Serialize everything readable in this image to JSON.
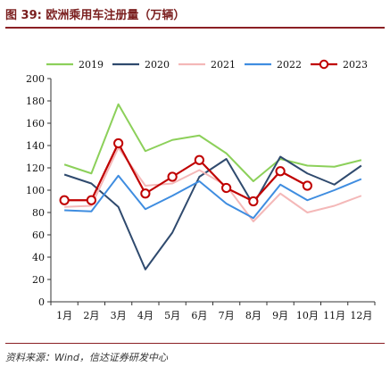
{
  "header": {
    "title": "图 39:  欧洲乘用车注册量（万辆）"
  },
  "footer": {
    "source": "资料来源：Wind，信达证券研发中心"
  },
  "chart_data": {
    "type": "line",
    "title": "图 39:  欧洲乘用车注册量（万辆）",
    "categories": [
      "1月",
      "2月",
      "3月",
      "4月",
      "5月",
      "6月",
      "7月",
      "8月",
      "9月",
      "10月",
      "11月",
      "12月"
    ],
    "ylim": [
      0,
      200
    ],
    "yticks": [
      0,
      20,
      40,
      60,
      80,
      100,
      120,
      140,
      160,
      180,
      200
    ],
    "legend_position": "top",
    "grid": false,
    "series": [
      {
        "name": "2019",
        "color": "#8cd05a",
        "marker": false,
        "values": [
          123,
          115,
          177,
          135,
          145,
          149,
          133,
          108,
          128,
          122,
          121,
          127
        ]
      },
      {
        "name": "2020",
        "color": "#2f4a6e",
        "marker": false,
        "values": [
          114,
          106,
          85,
          29,
          62,
          112,
          128,
          87,
          130,
          115,
          105,
          122
        ]
      },
      {
        "name": "2021",
        "color": "#f4b8b8",
        "marker": false,
        "values": [
          85,
          86,
          138,
          104,
          106,
          118,
          104,
          72,
          97,
          80,
          86,
          95
        ]
      },
      {
        "name": "2022",
        "color": "#3f8de0",
        "marker": false,
        "values": [
          82,
          81,
          113,
          83,
          95,
          108,
          88,
          75,
          105,
          91,
          100,
          110
        ]
      },
      {
        "name": "2023",
        "color": "#c00000",
        "marker": true,
        "values": [
          91,
          91,
          142,
          97,
          112,
          127,
          102,
          90,
          117,
          104,
          null,
          null
        ]
      }
    ]
  }
}
